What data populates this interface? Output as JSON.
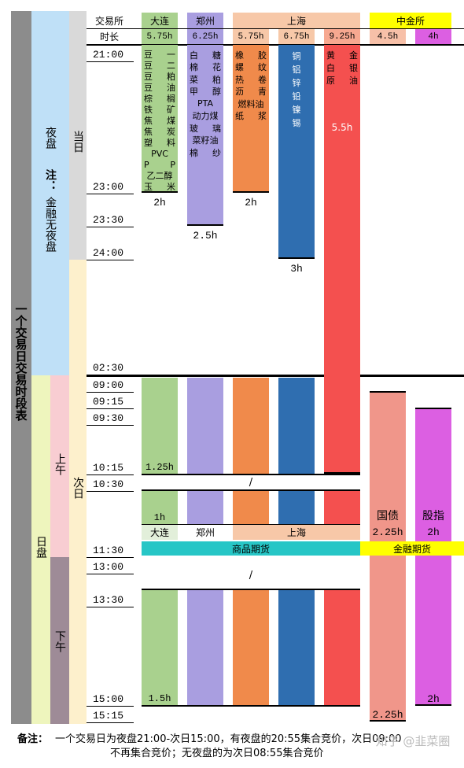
{
  "title": "一个交易日交易时段表",
  "sessions": {
    "night": "夜盘",
    "note_label": "注：",
    "note_text": "金融无夜盘",
    "day": "日盘",
    "morning": "上午",
    "afternoon": "下午",
    "same_day": "当日",
    "next_day": "次日"
  },
  "header": {
    "exchange_label": "交易所",
    "duration_label": "时长"
  },
  "exchanges": [
    {
      "name": "大连",
      "durations": [
        "5.75h"
      ]
    },
    {
      "name": "郑州",
      "durations": [
        "6.25h"
      ]
    },
    {
      "name": "上海",
      "durations": [
        "5.75h",
        "6.75h",
        "9.25h"
      ]
    },
    {
      "name": "中金所",
      "durations": [
        "4.5h",
        "4h"
      ]
    }
  ],
  "times": [
    "21:00",
    "23:00",
    "23:30",
    "24:00",
    "02:30",
    "09:00",
    "09:15",
    "09:30",
    "10:15",
    "10:30",
    "11:30",
    "13:00",
    "13:30",
    "15:00",
    "15:15"
  ],
  "night_products": [
    {
      "items": [
        "豆一",
        "豆二",
        "豆粕",
        "豆油",
        "棕榈",
        "铁矿",
        "焦煤",
        "焦炭",
        "塑料",
        "PVC",
        "PP",
        "乙二醇",
        "玉米"
      ],
      "duration": "2h"
    },
    {
      "items": [
        "白糖",
        "棉花",
        "菜粕",
        "甲醇",
        "PTA",
        "动力煤",
        "玻璃",
        "菜籽油",
        "棉纱"
      ],
      "duration": "2.5h"
    },
    {
      "items": [
        "橡胶",
        "螺纹",
        "热卷",
        "沥青",
        "燃料油",
        "纸浆"
      ],
      "duration": "2h"
    },
    {
      "items": [
        "铜",
        "铝",
        "锌",
        "铅",
        "镍",
        "锡"
      ],
      "duration": "3h"
    },
    {
      "items": [
        "黄金",
        "白银",
        "原油"
      ],
      "duration": "5.5h"
    }
  ],
  "day": {
    "morning1": "1.25h",
    "break1": "/",
    "morning2": "1h",
    "mini_headers": [
      "大连",
      "郑州",
      "上海"
    ],
    "commodity": "商品期货",
    "financial": "金融期货",
    "break2": "/",
    "afternoon": "1.5h"
  },
  "financial_products": [
    {
      "name": "国债",
      "duration": "2.25h",
      "total": "2.25h"
    },
    {
      "name": "股指",
      "duration": "2h",
      "total": "2h"
    }
  ],
  "footer": {
    "label": "备注：",
    "lines": [
      "一个交易日为夜盘21:00-次日15:00，有夜盘的20:55集合竞价，次日09:00",
      "不再集合竞价；无夜盘的为次日08:55集合竞价"
    ]
  },
  "watermark": "知乎 @韭菜圈"
}
